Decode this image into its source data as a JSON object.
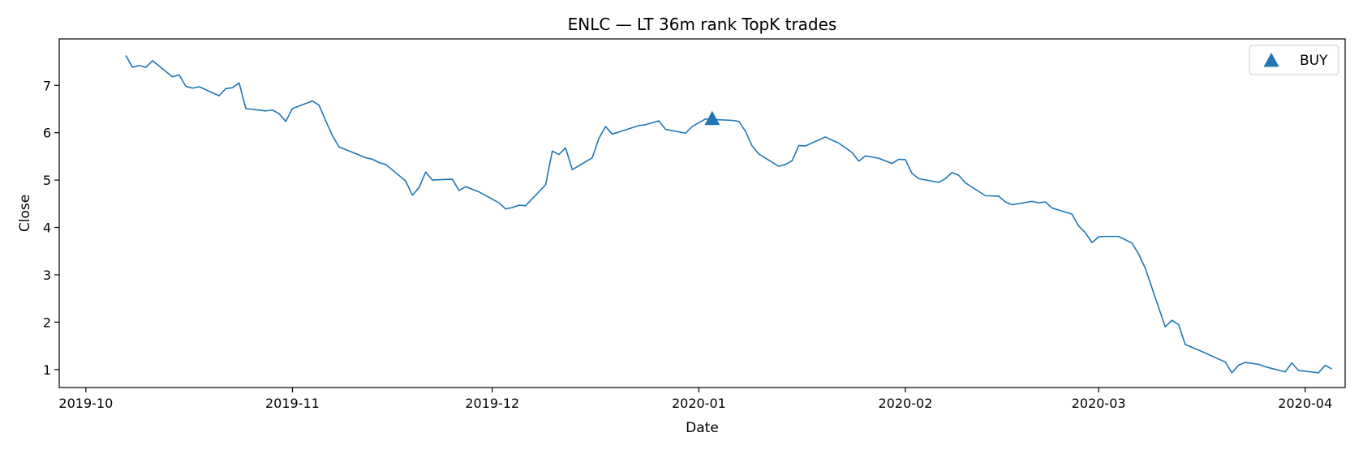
{
  "colors": {
    "series": "#1f77b4",
    "axis": "#000000",
    "legend_border": "#cccccc"
  },
  "chart_data": {
    "type": "line",
    "title": "ENLC — LT 36m rank TopK trades",
    "xlabel": "Date",
    "ylabel": "Close",
    "xlim": [
      "2019-09-27",
      "2020-04-07"
    ],
    "ylim": [
      0.62,
      7.98
    ],
    "x_ticks": [
      {
        "date": "2019-10-01",
        "label": "2019-10"
      },
      {
        "date": "2019-11-01",
        "label": "2019-11"
      },
      {
        "date": "2019-12-01",
        "label": "2019-12"
      },
      {
        "date": "2020-01-01",
        "label": "2020-01"
      },
      {
        "date": "2020-02-01",
        "label": "2020-02"
      },
      {
        "date": "2020-03-01",
        "label": "2020-03"
      },
      {
        "date": "2020-04-01",
        "label": "2020-04"
      }
    ],
    "y_ticks": [
      1,
      2,
      3,
      4,
      5,
      6,
      7
    ],
    "legend": {
      "position": "top-right",
      "entries": [
        {
          "label": "BUY",
          "marker": "triangle-up"
        }
      ]
    },
    "series": [
      {
        "name": "Close",
        "points": [
          [
            "2019-10-07",
            7.63
          ],
          [
            "2019-10-08",
            7.38
          ],
          [
            "2019-10-09",
            7.42
          ],
          [
            "2019-10-10",
            7.38
          ],
          [
            "2019-10-11",
            7.52
          ],
          [
            "2019-10-14",
            7.18
          ],
          [
            "2019-10-15",
            7.22
          ],
          [
            "2019-10-16",
            6.98
          ],
          [
            "2019-10-17",
            6.94
          ],
          [
            "2019-10-18",
            6.97
          ],
          [
            "2019-10-21",
            6.78
          ],
          [
            "2019-10-22",
            6.93
          ],
          [
            "2019-10-23",
            6.95
          ],
          [
            "2019-10-24",
            7.05
          ],
          [
            "2019-10-25",
            6.51
          ],
          [
            "2019-10-28",
            6.46
          ],
          [
            "2019-10-29",
            6.48
          ],
          [
            "2019-10-30",
            6.4
          ],
          [
            "2019-10-31",
            6.24
          ],
          [
            "2019-11-01",
            6.51
          ],
          [
            "2019-11-04",
            6.67
          ],
          [
            "2019-11-05",
            6.58
          ],
          [
            "2019-11-06",
            6.25
          ],
          [
            "2019-11-07",
            5.94
          ],
          [
            "2019-11-08",
            5.7
          ],
          [
            "2019-11-11",
            5.53
          ],
          [
            "2019-11-12",
            5.47
          ],
          [
            "2019-11-13",
            5.44
          ],
          [
            "2019-11-14",
            5.37
          ],
          [
            "2019-11-15",
            5.33
          ],
          [
            "2019-11-18",
            4.98
          ],
          [
            "2019-11-19",
            4.68
          ],
          [
            "2019-11-20",
            4.84
          ],
          [
            "2019-11-21",
            5.17
          ],
          [
            "2019-11-22",
            5.0
          ],
          [
            "2019-11-25",
            5.02
          ],
          [
            "2019-11-26",
            4.78
          ],
          [
            "2019-11-27",
            4.86
          ],
          [
            "2019-11-29",
            4.75
          ],
          [
            "2019-12-02",
            4.52
          ],
          [
            "2019-12-03",
            4.39
          ],
          [
            "2019-12-04",
            4.42
          ],
          [
            "2019-12-05",
            4.47
          ],
          [
            "2019-12-06",
            4.46
          ],
          [
            "2019-12-09",
            4.9
          ],
          [
            "2019-12-10",
            5.61
          ],
          [
            "2019-12-11",
            5.54
          ],
          [
            "2019-12-12",
            5.68
          ],
          [
            "2019-12-13",
            5.22
          ],
          [
            "2019-12-16",
            5.47
          ],
          [
            "2019-12-17",
            5.88
          ],
          [
            "2019-12-18",
            6.13
          ],
          [
            "2019-12-19",
            5.97
          ],
          [
            "2019-12-23",
            6.15
          ],
          [
            "2019-12-24",
            6.17
          ],
          [
            "2019-12-26",
            6.25
          ],
          [
            "2019-12-27",
            6.07
          ],
          [
            "2019-12-30",
            5.99
          ],
          [
            "2019-12-31",
            6.13
          ],
          [
            "2020-01-02",
            6.29
          ],
          [
            "2020-01-03",
            6.28
          ],
          [
            "2020-01-06",
            6.26
          ],
          [
            "2020-01-07",
            6.24
          ],
          [
            "2020-01-08",
            6.03
          ],
          [
            "2020-01-09",
            5.72
          ],
          [
            "2020-01-10",
            5.55
          ],
          [
            "2020-01-13",
            5.29
          ],
          [
            "2020-01-14",
            5.33
          ],
          [
            "2020-01-15",
            5.41
          ],
          [
            "2020-01-16",
            5.73
          ],
          [
            "2020-01-17",
            5.72
          ],
          [
            "2020-01-20",
            5.91
          ],
          [
            "2020-01-21",
            5.84
          ],
          [
            "2020-01-22",
            5.78
          ],
          [
            "2020-01-24",
            5.58
          ],
          [
            "2020-01-25",
            5.4
          ],
          [
            "2020-01-26",
            5.51
          ],
          [
            "2020-01-28",
            5.46
          ],
          [
            "2020-01-30",
            5.35
          ],
          [
            "2020-01-31",
            5.44
          ],
          [
            "2020-02-01",
            5.43
          ],
          [
            "2020-02-02",
            5.14
          ],
          [
            "2020-02-03",
            5.03
          ],
          [
            "2020-02-06",
            4.95
          ],
          [
            "2020-02-07",
            5.03
          ],
          [
            "2020-02-08",
            5.16
          ],
          [
            "2020-02-09",
            5.1
          ],
          [
            "2020-02-10",
            4.94
          ],
          [
            "2020-02-13",
            4.67
          ],
          [
            "2020-02-15",
            4.66
          ],
          [
            "2020-02-16",
            4.54
          ],
          [
            "2020-02-17",
            4.48
          ],
          [
            "2020-02-20",
            4.55
          ],
          [
            "2020-02-21",
            4.52
          ],
          [
            "2020-02-22",
            4.54
          ],
          [
            "2020-02-23",
            4.41
          ],
          [
            "2020-02-26",
            4.28
          ],
          [
            "2020-02-27",
            4.03
          ],
          [
            "2020-02-28",
            3.89
          ],
          [
            "2020-02-29",
            3.68
          ],
          [
            "2020-03-01",
            3.8
          ],
          [
            "2020-03-02",
            3.81
          ],
          [
            "2020-03-04",
            3.81
          ],
          [
            "2020-03-05",
            3.74
          ],
          [
            "2020-03-06",
            3.67
          ],
          [
            "2020-03-07",
            3.44
          ],
          [
            "2020-03-08",
            3.14
          ],
          [
            "2020-03-11",
            1.9
          ],
          [
            "2020-03-12",
            2.04
          ],
          [
            "2020-03-13",
            1.95
          ],
          [
            "2020-03-14",
            1.53
          ],
          [
            "2020-03-17",
            1.35
          ],
          [
            "2020-03-19",
            1.22
          ],
          [
            "2020-03-20",
            1.16
          ],
          [
            "2020-03-21",
            0.93
          ],
          [
            "2020-03-22",
            1.09
          ],
          [
            "2020-03-23",
            1.15
          ],
          [
            "2020-03-25",
            1.11
          ],
          [
            "2020-03-26",
            1.06
          ],
          [
            "2020-03-29",
            0.95
          ],
          [
            "2020-03-30",
            1.14
          ],
          [
            "2020-03-31",
            0.98
          ],
          [
            "2020-04-03",
            0.93
          ],
          [
            "2020-04-04",
            1.09
          ],
          [
            "2020-04-05",
            1.01
          ]
        ]
      }
    ],
    "markers": [
      {
        "name": "BUY",
        "type": "triangle-up",
        "date": "2020-01-03",
        "value": 6.29
      }
    ]
  }
}
